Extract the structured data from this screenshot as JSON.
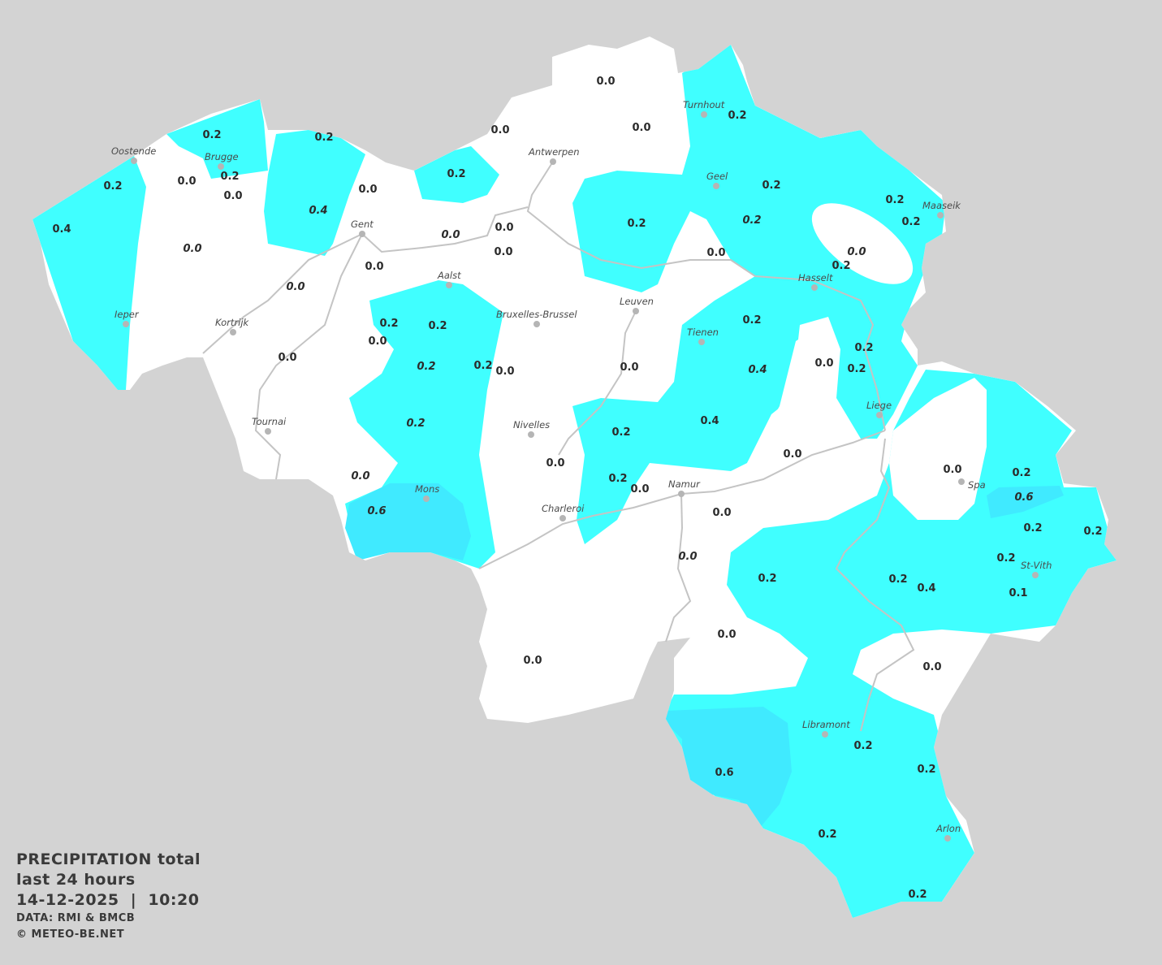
{
  "legend": {
    "title": "PRECIPITATION total",
    "period": "last 24 hours",
    "datetime": "14-12-2025  |  10:20",
    "source": "DATA: RMI & BMCB",
    "copyright": "© METEO-BE.NET"
  },
  "colors": {
    "background": "#d3d3d3",
    "land": "#ffffff",
    "rain_0_2": "#40ffff",
    "rain_0_6": "#40eaff",
    "rivers": "#bdbdbd",
    "city_dot": "#b5b5b5"
  },
  "cities": [
    "Oostende",
    "Brugge",
    "Antwerpen",
    "Turnhout",
    "Geel",
    "Maaseik",
    "Gent",
    "Aalst",
    "Bruxelles-Brussel",
    "Leuven",
    "Hasselt",
    "Ieper",
    "Kortrijk",
    "Tienen",
    "Liege",
    "Tournai",
    "Nivelles",
    "Spa",
    "Mons",
    "Namur",
    "Charleroi",
    "St-Vith",
    "Libramont",
    "Arlon"
  ],
  "values": [
    {
      "v": "0.0"
    },
    {
      "v": "0.0"
    },
    {
      "v": "0.0"
    },
    {
      "v": "0.2"
    },
    {
      "v": "0.2"
    },
    {
      "v": "0.2"
    },
    {
      "v": "0.2"
    },
    {
      "v": "0.0"
    },
    {
      "v": "0.2"
    },
    {
      "v": "0.0"
    },
    {
      "v": "0.2"
    },
    {
      "v": "0.0"
    },
    {
      "v": "0.2"
    },
    {
      "v": "0.2"
    },
    {
      "v": "0.2",
      "italic": true
    },
    {
      "v": "0.2"
    },
    {
      "v": "0.2"
    },
    {
      "v": "0.4"
    },
    {
      "v": "0.4",
      "italic": true
    },
    {
      "v": "0.0",
      "italic": true
    },
    {
      "v": "0.0",
      "italic": true
    },
    {
      "v": "0.0"
    },
    {
      "v": "0.0"
    },
    {
      "v": "0.0"
    },
    {
      "v": "0.0"
    },
    {
      "v": "0.0",
      "italic": true
    },
    {
      "v": "0.2"
    },
    {
      "v": "0.0",
      "italic": true
    },
    {
      "v": "0.2"
    },
    {
      "v": "0.2"
    },
    {
      "v": "0.0"
    },
    {
      "v": "0.2"
    },
    {
      "v": "0.0"
    },
    {
      "v": "0.2",
      "italic": true
    },
    {
      "v": "0.2"
    },
    {
      "v": "0.0"
    },
    {
      "v": "0.0"
    },
    {
      "v": "0.4",
      "italic": true
    },
    {
      "v": "0.0"
    },
    {
      "v": "0.2"
    },
    {
      "v": "0.2"
    },
    {
      "v": "0.2",
      "italic": true
    },
    {
      "v": "0.2"
    },
    {
      "v": "0.4"
    },
    {
      "v": "0.0"
    },
    {
      "v": "0.0"
    },
    {
      "v": "0.0",
      "italic": true
    },
    {
      "v": "0.2"
    },
    {
      "v": "0.0"
    },
    {
      "v": "0.0"
    },
    {
      "v": "0.2"
    },
    {
      "v": "0.6",
      "italic": true
    },
    {
      "v": "0.6",
      "italic": true
    },
    {
      "v": "0.0"
    },
    {
      "v": "0.2"
    },
    {
      "v": "0.2"
    },
    {
      "v": "0.0",
      "italic": true
    },
    {
      "v": "0.2"
    },
    {
      "v": "0.2"
    },
    {
      "v": "0.2"
    },
    {
      "v": "0.4"
    },
    {
      "v": "0.1"
    },
    {
      "v": "0.0"
    },
    {
      "v": "0.0"
    },
    {
      "v": "0.0"
    },
    {
      "v": "0.2"
    },
    {
      "v": "0.6"
    },
    {
      "v": "0.2"
    },
    {
      "v": "0.2"
    },
    {
      "v": "0.2"
    }
  ]
}
